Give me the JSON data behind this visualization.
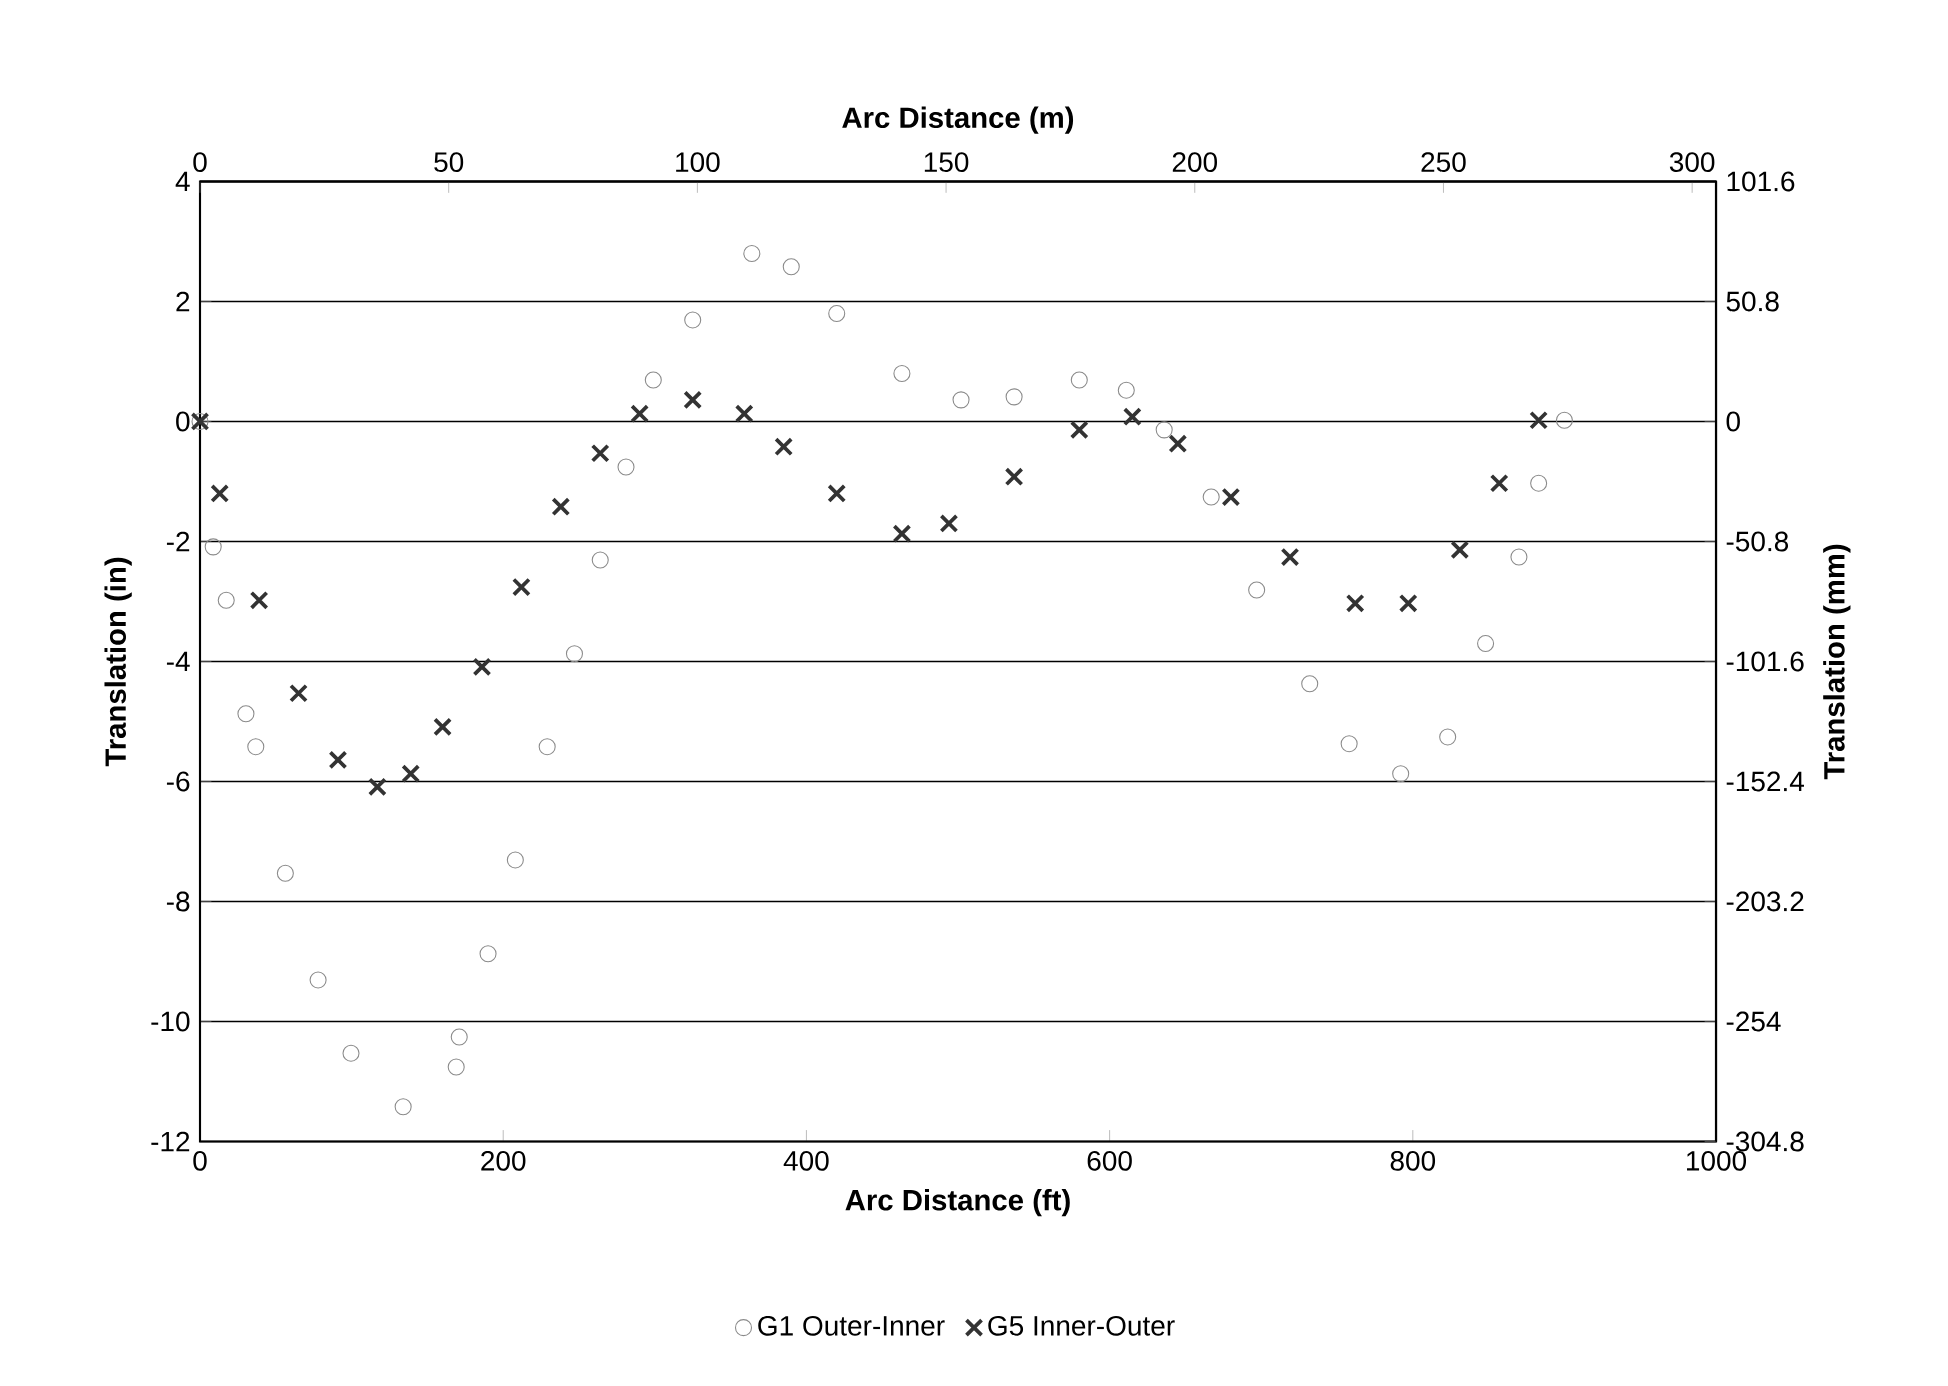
{
  "chart_data": {
    "type": "scatter",
    "xlabel": "Arc Distance (ft)",
    "ylabel": "Translation (in)",
    "x2label": "Arc Distance (m)",
    "y2label": "Translation (mm)",
    "xlim": [
      0,
      1000
    ],
    "xticks": [
      0,
      200,
      400,
      600,
      800,
      1000
    ],
    "ylim": [
      -12,
      4
    ],
    "yticks": [
      -12,
      -10,
      -8,
      -6,
      -4,
      -2,
      0,
      2,
      4
    ],
    "x2lim": [
      0,
      304.8
    ],
    "x2ticks": [
      0,
      50,
      100,
      150,
      200,
      250,
      300
    ],
    "y2lim": [
      -304.8,
      101.6
    ],
    "y2ticks": [
      -304.8,
      -254,
      -203.2,
      -152.4,
      -101.6,
      -50.8,
      0,
      50.8,
      101.6
    ],
    "grid": "y",
    "legend": "bottom",
    "series": [
      {
        "name": "G1 Outer-Inner",
        "color": "#8a8a8a",
        "marker": "circle",
        "x": [
          0,
          8.7,
          17.3,
          30.3,
          36.8,
          56.3,
          77.9,
          99.6,
          134,
          169,
          171,
          190,
          208,
          229,
          247,
          264,
          281,
          299,
          325,
          364,
          390,
          420,
          463,
          502,
          537,
          580,
          611,
          636,
          667,
          697,
          732,
          758,
          792,
          823,
          848,
          870,
          883,
          900
        ],
        "values": [
          0,
          -2.09,
          -2.98,
          -4.87,
          -5.42,
          -7.53,
          -9.31,
          -10.53,
          -11.42,
          -10.76,
          -10.26,
          -8.87,
          -7.31,
          -5.42,
          -3.87,
          -2.31,
          -0.76,
          0.69,
          1.69,
          2.8,
          2.58,
          1.8,
          0.8,
          0.36,
          0.41,
          0.69,
          0.52,
          -0.14,
          -1.26,
          -2.81,
          -4.37,
          -5.37,
          -5.87,
          -5.26,
          -3.7,
          -2.26,
          -1.03,
          0.02
        ]
      },
      {
        "name": "G5 Inner-Outer",
        "color": "#333333",
        "marker": "cross",
        "x": [
          0,
          13,
          39,
          65,
          91,
          117,
          139,
          160,
          186,
          212,
          238,
          264,
          290,
          325,
          359,
          385,
          420,
          463,
          494,
          537,
          580,
          615,
          645,
          680,
          719,
          762,
          797,
          831,
          857,
          883
        ],
        "values": [
          0,
          -1.2,
          -2.98,
          -4.53,
          -5.64,
          -6.09,
          -5.87,
          -5.09,
          -4.09,
          -2.76,
          -1.42,
          -0.53,
          0.13,
          0.36,
          0.13,
          -0.42,
          -1.2,
          -1.87,
          -1.7,
          -0.92,
          -0.14,
          0.08,
          -0.37,
          -1.26,
          -2.26,
          -3.03,
          -3.03,
          -2.14,
          -1.03,
          0.02
        ]
      }
    ]
  }
}
